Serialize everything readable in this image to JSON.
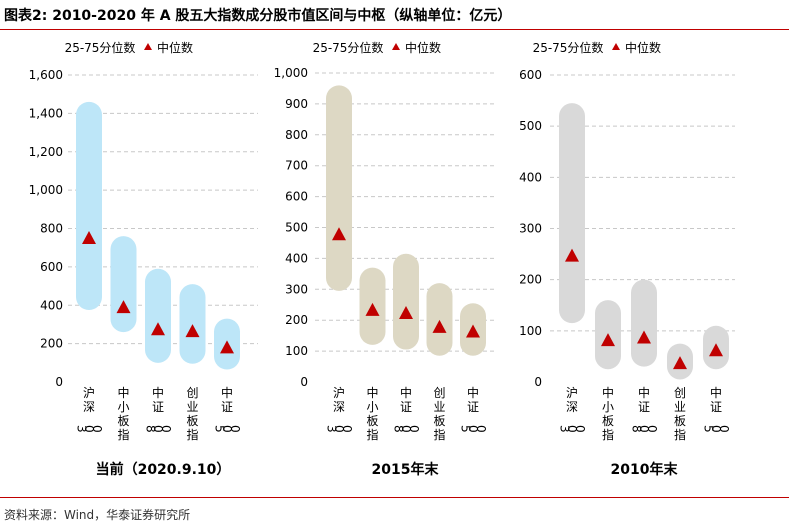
{
  "figure_title": "图表2:  2010-2020 年 A 股五大指数成分股市值区间与中枢（纵轴单位：亿元）",
  "source": "资料来源：Wind，华泰证券研究所",
  "legend": {
    "range_label": "25-75分位数",
    "median_label": "中位数"
  },
  "colors": {
    "accent": "#c00000",
    "median_marker": "#c00000"
  },
  "chart_data": [
    {
      "type": "bar",
      "title": "当前（2020.9.10）",
      "bar_color": "#bde6f8",
      "ylim": [
        0,
        1600
      ],
      "yticks": [
        0,
        200,
        400,
        600,
        800,
        1000,
        1200,
        1400,
        1600
      ],
      "ytick_labels": [
        "0",
        "200",
        "400",
        "600",
        "800",
        "1,000",
        "1,200",
        "1,400",
        "1,600"
      ],
      "categories": [
        "沪深300",
        "中小板指",
        "中证800",
        "创业板指",
        "中证500"
      ],
      "series": [
        {
          "name": "25-75分位数",
          "low": [
            375,
            260,
            100,
            95,
            65
          ],
          "high": [
            1460,
            760,
            590,
            510,
            330
          ]
        },
        {
          "name": "中位数",
          "values": [
            745,
            385,
            270,
            260,
            175
          ]
        }
      ]
    },
    {
      "type": "bar",
      "title": "2015年末",
      "bar_color": "#ddd8c4",
      "ylim": [
        0,
        1000
      ],
      "yticks": [
        0,
        100,
        200,
        300,
        400,
        500,
        600,
        700,
        800,
        900,
        1000
      ],
      "ytick_labels": [
        "0",
        "100",
        "200",
        "300",
        "400",
        "500",
        "600",
        "700",
        "800",
        "900",
        "1,000"
      ],
      "categories": [
        "沪深300",
        "中小板指",
        "中证800",
        "创业板指",
        "中证500"
      ],
      "series": [
        {
          "name": "25-75分位数",
          "low": [
            295,
            120,
            105,
            85,
            85
          ],
          "high": [
            960,
            370,
            415,
            320,
            255
          ]
        },
        {
          "name": "中位数",
          "values": [
            475,
            230,
            220,
            175,
            160
          ]
        }
      ]
    },
    {
      "type": "bar",
      "title": "2010年末",
      "bar_color": "#d9d9d9",
      "ylim": [
        0,
        600
      ],
      "yticks": [
        0,
        100,
        200,
        300,
        400,
        500,
        600
      ],
      "ytick_labels": [
        "0",
        "100",
        "200",
        "300",
        "400",
        "500",
        "600"
      ],
      "categories": [
        "沪深300",
        "中小板指",
        "中证800",
        "创业板指",
        "中证500"
      ],
      "series": [
        {
          "name": "25-75分位数",
          "low": [
            115,
            25,
            30,
            5,
            25
          ],
          "high": [
            545,
            160,
            200,
            75,
            110
          ]
        },
        {
          "name": "中位数",
          "values": [
            245,
            80,
            85,
            35,
            60
          ]
        }
      ]
    }
  ]
}
